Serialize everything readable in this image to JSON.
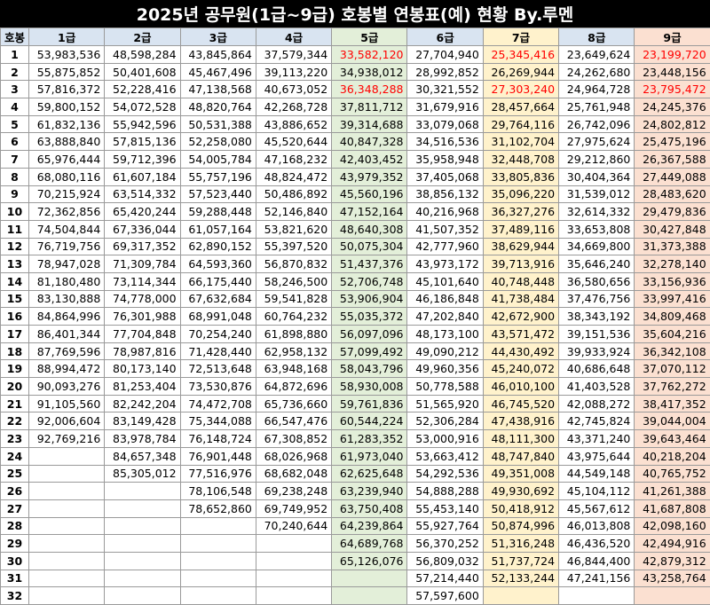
{
  "title": "2025년 공무원(1급~9급) 호봉별 연봉표(예) 현황 By.루멘",
  "headers": [
    "호봉",
    "1급",
    "2급",
    "3급",
    "4급",
    "5급",
    "6급",
    "7급",
    "8급",
    "9급"
  ],
  "rows": [
    [
      "1",
      "53,983,536",
      "48,598,284",
      "43,845,864",
      "37,579,344",
      "33,582,120",
      "27,704,940",
      "25,345,416",
      "23,649,624",
      "23,199,720"
    ],
    [
      "2",
      "55,875,852",
      "50,401,608",
      "45,467,496",
      "39,113,220",
      "34,938,012",
      "28,992,852",
      "26,269,944",
      "24,262,680",
      "23,448,156"
    ],
    [
      "3",
      "57,816,372",
      "52,228,416",
      "47,138,568",
      "40,673,052",
      "36,348,288",
      "30,321,552",
      "27,303,240",
      "24,964,728",
      "23,795,472"
    ],
    [
      "4",
      "59,800,152",
      "54,072,528",
      "48,820,764",
      "42,268,728",
      "37,811,712",
      "31,679,916",
      "28,457,664",
      "25,761,948",
      "24,245,376"
    ],
    [
      "5",
      "61,832,136",
      "55,942,596",
      "50,531,388",
      "43,886,652",
      "39,314,688",
      "33,079,068",
      "29,764,116",
      "26,742,096",
      "24,802,812"
    ],
    [
      "6",
      "63,888,840",
      "57,815,136",
      "52,258,080",
      "45,520,644",
      "40,847,328",
      "34,516,536",
      "31,102,704",
      "27,975,624",
      "25,475,196"
    ],
    [
      "7",
      "65,976,444",
      "59,712,396",
      "54,005,784",
      "47,168,232",
      "42,403,452",
      "35,958,948",
      "32,448,708",
      "29,212,860",
      "26,367,588"
    ],
    [
      "8",
      "68,080,116",
      "61,607,184",
      "55,757,196",
      "48,824,472",
      "43,979,352",
      "37,405,068",
      "33,805,836",
      "30,404,364",
      "27,449,088"
    ],
    [
      "9",
      "70,215,924",
      "63,514,332",
      "57,523,440",
      "50,486,892",
      "45,560,196",
      "38,856,132",
      "35,096,220",
      "31,539,012",
      "28,483,620"
    ],
    [
      "10",
      "72,362,856",
      "65,420,244",
      "59,288,448",
      "52,146,840",
      "47,152,164",
      "40,216,968",
      "36,327,276",
      "32,614,332",
      "29,479,836"
    ],
    [
      "11",
      "74,504,844",
      "67,336,044",
      "61,057,164",
      "53,821,620",
      "48,640,308",
      "41,507,352",
      "37,489,116",
      "33,653,808",
      "30,427,848"
    ],
    [
      "12",
      "76,719,756",
      "69,317,352",
      "62,890,152",
      "55,397,520",
      "50,075,304",
      "42,777,960",
      "38,629,944",
      "34,669,800",
      "31,373,388"
    ],
    [
      "13",
      "78,947,028",
      "71,309,784",
      "64,593,360",
      "56,870,832",
      "51,437,376",
      "43,973,172",
      "39,713,916",
      "35,646,240",
      "32,278,140"
    ],
    [
      "14",
      "81,180,480",
      "73,114,344",
      "66,175,440",
      "58,246,500",
      "52,706,748",
      "45,101,640",
      "40,748,448",
      "36,580,656",
      "33,156,936"
    ],
    [
      "15",
      "83,130,888",
      "74,778,000",
      "67,632,684",
      "59,541,828",
      "53,906,904",
      "46,186,848",
      "41,738,484",
      "37,476,756",
      "33,997,416"
    ],
    [
      "16",
      "84,864,996",
      "76,301,988",
      "68,991,048",
      "60,764,232",
      "55,035,372",
      "47,202,840",
      "42,672,900",
      "38,343,192",
      "34,809,468"
    ],
    [
      "17",
      "86,401,344",
      "77,704,848",
      "70,254,240",
      "61,898,880",
      "56,097,096",
      "48,173,100",
      "43,571,472",
      "39,151,536",
      "35,604,216"
    ],
    [
      "18",
      "87,769,596",
      "78,987,816",
      "71,428,440",
      "62,958,132",
      "57,099,492",
      "49,090,212",
      "44,430,492",
      "39,933,924",
      "36,342,108"
    ],
    [
      "19",
      "88,994,472",
      "80,173,140",
      "72,513,648",
      "63,948,168",
      "58,043,796",
      "49,960,356",
      "45,240,072",
      "40,686,648",
      "37,070,112"
    ],
    [
      "20",
      "90,093,276",
      "81,253,404",
      "73,530,876",
      "64,872,696",
      "58,930,008",
      "50,778,588",
      "46,010,100",
      "41,403,528",
      "37,762,272"
    ],
    [
      "21",
      "91,105,560",
      "82,242,204",
      "74,472,708",
      "65,736,660",
      "59,761,836",
      "51,565,920",
      "46,745,520",
      "42,088,272",
      "38,417,352"
    ],
    [
      "22",
      "92,006,604",
      "83,149,428",
      "75,344,088",
      "66,547,476",
      "60,544,224",
      "52,306,284",
      "47,438,916",
      "42,745,824",
      "39,044,004"
    ],
    [
      "23",
      "92,769,216",
      "83,978,784",
      "76,148,724",
      "67,308,852",
      "61,283,352",
      "53,000,916",
      "48,111,300",
      "43,371,240",
      "39,643,464"
    ],
    [
      "24",
      "",
      "84,657,348",
      "76,901,448",
      "68,026,968",
      "61,973,040",
      "53,663,412",
      "48,747,840",
      "43,975,644",
      "40,218,204"
    ],
    [
      "25",
      "",
      "85,305,012",
      "77,516,976",
      "68,682,048",
      "62,625,648",
      "54,292,536",
      "49,351,008",
      "44,549,148",
      "40,765,752"
    ],
    [
      "26",
      "",
      "",
      "78,106,548",
      "69,238,248",
      "63,239,940",
      "54,888,288",
      "49,930,692",
      "45,104,112",
      "41,261,388"
    ],
    [
      "27",
      "",
      "",
      "78,652,860",
      "69,749,952",
      "63,750,408",
      "55,453,140",
      "50,418,912",
      "45,567,612",
      "41,687,808"
    ],
    [
      "28",
      "",
      "",
      "",
      "70,240,644",
      "64,239,864",
      "55,927,764",
      "50,874,996",
      "46,013,808",
      "42,098,160"
    ],
    [
      "29",
      "",
      "",
      "",
      "",
      "64,689,768",
      "56,370,252",
      "51,316,248",
      "46,436,520",
      "42,494,916"
    ],
    [
      "30",
      "",
      "",
      "",
      "",
      "65,126,076",
      "56,809,032",
      "51,737,724",
      "46,844,400",
      "42,879,312"
    ],
    [
      "31",
      "",
      "",
      "",
      "",
      "",
      "57,214,440",
      "52,133,244",
      "47,241,156",
      "43,258,764"
    ],
    [
      "32",
      "",
      "",
      "",
      "",
      "",
      "57,597,600",
      "",
      "",
      ""
    ]
  ],
  "highlights": {
    "red_text": [
      [
        0,
        5
      ],
      [
        0,
        7
      ],
      [
        0,
        9
      ],
      [
        2,
        5
      ],
      [
        2,
        7
      ],
      [
        2,
        9
      ]
    ],
    "colors": {
      "header": "#d9e4f1",
      "grade5": "#e3efd9",
      "grade7": "#fff2cc",
      "grade9": "#fbe0d1",
      "red": "#ff0000",
      "title_bg": "#000000"
    }
  }
}
